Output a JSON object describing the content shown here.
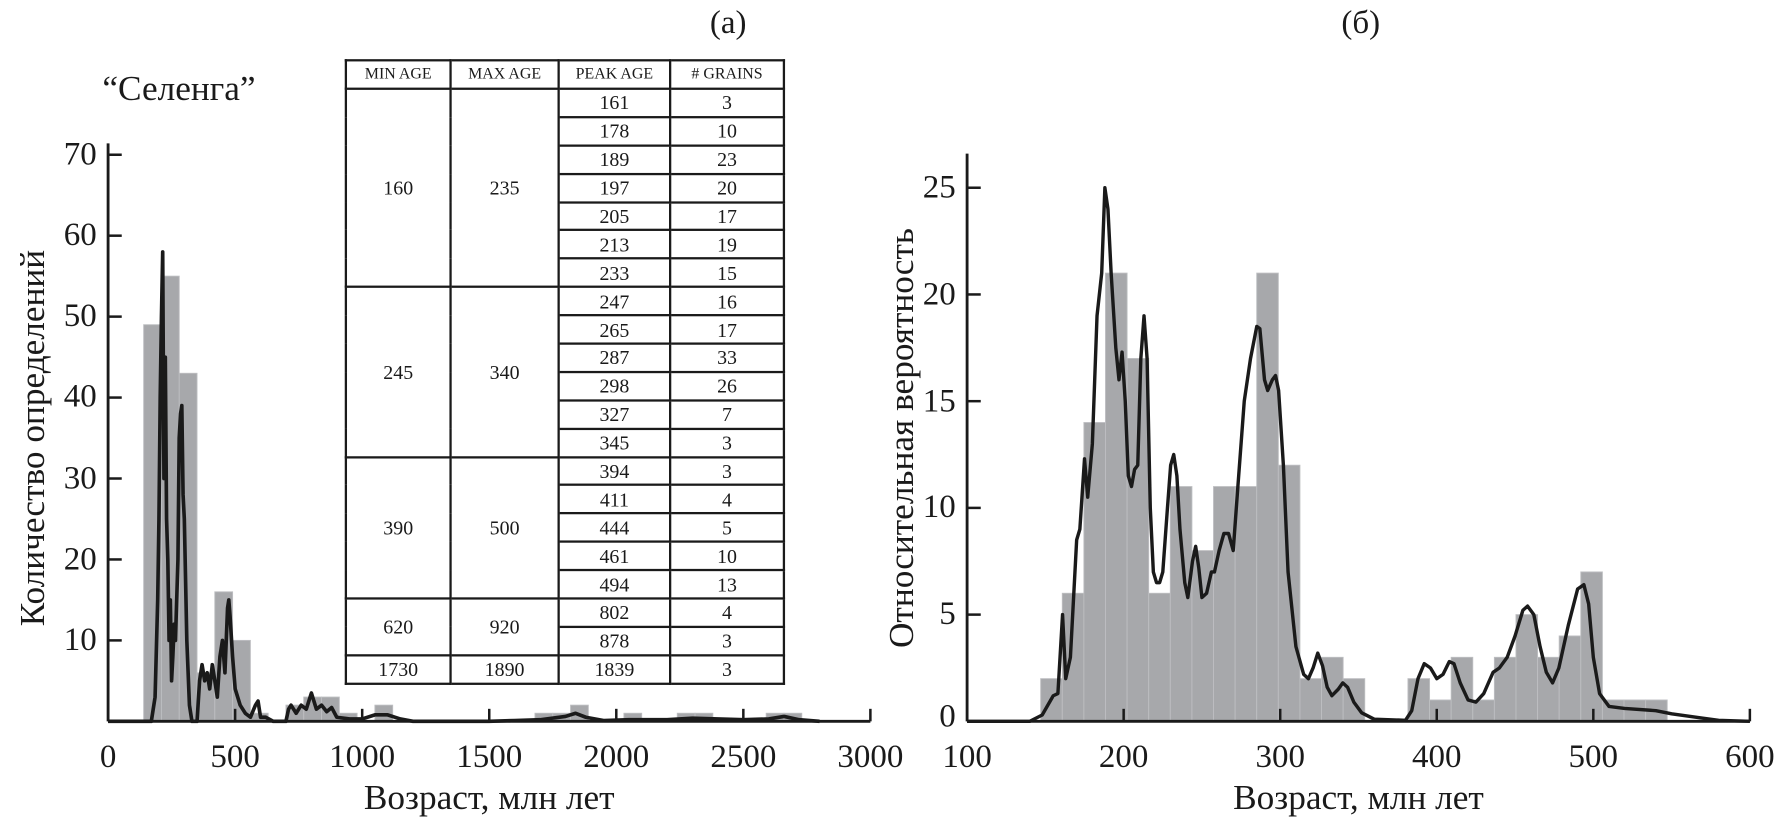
{
  "labels": {
    "panel_a": "(а)",
    "panel_b": "(б)",
    "sample": "“Селенга”"
  },
  "table": {
    "headers": [
      "MIN AGE",
      "MAX AGE",
      "PEAK AGE",
      "# GRAINS"
    ],
    "groups": [
      {
        "min": "160",
        "max": "235",
        "peaks": [
          [
            "161",
            "3"
          ],
          [
            "178",
            "10"
          ],
          [
            "189",
            "23"
          ],
          [
            "197",
            "20"
          ],
          [
            "205",
            "17"
          ],
          [
            "213",
            "19"
          ],
          [
            "233",
            "15"
          ]
        ]
      },
      {
        "min": "245",
        "max": "340",
        "peaks": [
          [
            "247",
            "16"
          ],
          [
            "265",
            "17"
          ],
          [
            "287",
            "33"
          ],
          [
            "298",
            "26"
          ],
          [
            "327",
            "7"
          ],
          [
            "345",
            "3"
          ]
        ]
      },
      {
        "min": "390",
        "max": "500",
        "peaks": [
          [
            "394",
            "3"
          ],
          [
            "411",
            "4"
          ],
          [
            "444",
            "5"
          ],
          [
            "461",
            "10"
          ],
          [
            "494",
            "13"
          ]
        ]
      },
      {
        "min": "620",
        "max": "920",
        "peaks": [
          [
            "802",
            "4"
          ],
          [
            "878",
            "3"
          ]
        ]
      },
      {
        "min": "1730",
        "max": "1890",
        "peaks": [
          [
            "1839",
            "3"
          ]
        ]
      }
    ]
  },
  "chart_data": [
    {
      "type": "bar",
      "panel": "(а)",
      "xlabel": "Возраст, млн лет",
      "ylabel": "Количество определений",
      "xlim": [
        0,
        3000
      ],
      "ylim": [
        0,
        70
      ],
      "xticks": [
        0,
        500,
        1000,
        1500,
        2000,
        2500,
        3000
      ],
      "yticks": [
        10,
        20,
        30,
        40,
        50,
        60,
        70
      ],
      "grid": false,
      "bar_color": "#a7a8ab",
      "line_color": "#1a1a1a",
      "histogram": [
        [
          140,
          210,
          49
        ],
        [
          210,
          280,
          55
        ],
        [
          280,
          350,
          43
        ],
        [
          350,
          420,
          6
        ],
        [
          420,
          490,
          16
        ],
        [
          490,
          560,
          10
        ],
        [
          560,
          630,
          1
        ],
        [
          700,
          770,
          2
        ],
        [
          770,
          840,
          3
        ],
        [
          840,
          910,
          3
        ],
        [
          910,
          980,
          1
        ],
        [
          1050,
          1120,
          2
        ],
        [
          1680,
          1750,
          1
        ],
        [
          1750,
          1820,
          1
        ],
        [
          1820,
          1890,
          2
        ],
        [
          2030,
          2100,
          1
        ],
        [
          2240,
          2310,
          1
        ],
        [
          2310,
          2380,
          1
        ],
        [
          2590,
          2660,
          1
        ],
        [
          2660,
          2730,
          1
        ]
      ],
      "curve": [
        [
          0,
          0
        ],
        [
          170,
          0
        ],
        [
          185,
          3
        ],
        [
          195,
          15
        ],
        [
          200,
          25
        ],
        [
          205,
          40
        ],
        [
          210,
          50
        ],
        [
          215,
          58
        ],
        [
          220,
          30
        ],
        [
          225,
          45
        ],
        [
          230,
          25
        ],
        [
          235,
          20
        ],
        [
          240,
          10
        ],
        [
          245,
          15
        ],
        [
          250,
          5
        ],
        [
          255,
          8
        ],
        [
          260,
          12
        ],
        [
          265,
          10
        ],
        [
          275,
          20
        ],
        [
          280,
          35
        ],
        [
          285,
          38
        ],
        [
          290,
          39
        ],
        [
          295,
          28
        ],
        [
          300,
          25
        ],
        [
          310,
          10
        ],
        [
          320,
          2
        ],
        [
          330,
          0
        ],
        [
          350,
          0
        ],
        [
          360,
          5
        ],
        [
          370,
          7
        ],
        [
          380,
          5
        ],
        [
          390,
          6
        ],
        [
          400,
          4
        ],
        [
          410,
          7
        ],
        [
          420,
          5
        ],
        [
          430,
          3
        ],
        [
          440,
          8
        ],
        [
          450,
          10
        ],
        [
          460,
          6
        ],
        [
          470,
          14
        ],
        [
          475,
          15
        ],
        [
          480,
          13
        ],
        [
          490,
          8
        ],
        [
          500,
          4
        ],
        [
          520,
          2
        ],
        [
          540,
          1
        ],
        [
          560,
          0.5
        ],
        [
          580,
          2
        ],
        [
          590,
          2.5
        ],
        [
          600,
          0.5
        ],
        [
          620,
          0.5
        ],
        [
          650,
          0
        ],
        [
          700,
          0
        ],
        [
          710,
          1.5
        ],
        [
          720,
          2
        ],
        [
          740,
          1
        ],
        [
          760,
          2
        ],
        [
          780,
          1.5
        ],
        [
          800,
          3.5
        ],
        [
          820,
          1.5
        ],
        [
          840,
          2
        ],
        [
          860,
          1.2
        ],
        [
          880,
          1.7
        ],
        [
          900,
          0.5
        ],
        [
          950,
          0.3
        ],
        [
          1000,
          0.3
        ],
        [
          1050,
          0.8
        ],
        [
          1100,
          0.8
        ],
        [
          1150,
          0.3
        ],
        [
          1200,
          0
        ],
        [
          1500,
          0
        ],
        [
          1600,
          0.1
        ],
        [
          1700,
          0.2
        ],
        [
          1800,
          0.6
        ],
        [
          1840,
          1
        ],
        [
          1880,
          0.5
        ],
        [
          1950,
          0.1
        ],
        [
          2050,
          0.2
        ],
        [
          2200,
          0.2
        ],
        [
          2300,
          0.4
        ],
        [
          2400,
          0.3
        ],
        [
          2500,
          0.2
        ],
        [
          2600,
          0.3
        ],
        [
          2660,
          0.6
        ],
        [
          2720,
          0.2
        ],
        [
          2800,
          0
        ]
      ]
    },
    {
      "type": "bar",
      "panel": "(б)",
      "xlabel": "Возраст, млн лет",
      "ylabel": "Относительная вероятность",
      "xlim": [
        100,
        600
      ],
      "ylim": [
        0,
        26
      ],
      "xticks": [
        100,
        200,
        300,
        400,
        500,
        600
      ],
      "yticks": [
        0,
        5,
        10,
        15,
        20,
        25
      ],
      "grid": false,
      "bar_color": "#a7a8ab",
      "line_color": "#1a1a1a",
      "histogram": [
        [
          147,
          160.8,
          2
        ],
        [
          160.8,
          174.6,
          6
        ],
        [
          174.6,
          188.4,
          14
        ],
        [
          188.4,
          202.2,
          21
        ],
        [
          202.2,
          216,
          17
        ],
        [
          216,
          229.8,
          6
        ],
        [
          229.8,
          243.6,
          11
        ],
        [
          243.6,
          257.4,
          8
        ],
        [
          257.4,
          271.2,
          11
        ],
        [
          271.2,
          285,
          11
        ],
        [
          285,
          298.8,
          21
        ],
        [
          298.8,
          312.6,
          12
        ],
        [
          312.6,
          326.4,
          2
        ],
        [
          326.4,
          340.2,
          3
        ],
        [
          340.2,
          354,
          2
        ],
        [
          381.6,
          395.4,
          2
        ],
        [
          395.4,
          409.2,
          1
        ],
        [
          409.2,
          423,
          3
        ],
        [
          423,
          436.8,
          1
        ],
        [
          436.8,
          450.6,
          3
        ],
        [
          450.6,
          464.4,
          5
        ],
        [
          464.4,
          478.2,
          3
        ],
        [
          478.2,
          492,
          4
        ],
        [
          492,
          505.8,
          7
        ],
        [
          505.8,
          519.6,
          1
        ],
        [
          519.6,
          533.4,
          1
        ],
        [
          533.4,
          547.2,
          1
        ]
      ],
      "curve": [
        [
          100,
          0
        ],
        [
          140,
          0
        ],
        [
          148,
          0.3
        ],
        [
          155,
          1.2
        ],
        [
          158,
          1.3
        ],
        [
          161,
          5
        ],
        [
          163,
          2
        ],
        [
          166,
          3
        ],
        [
          170,
          8.5
        ],
        [
          172,
          9
        ],
        [
          175,
          12.3
        ],
        [
          177,
          10.5
        ],
        [
          180,
          13
        ],
        [
          183,
          19
        ],
        [
          186,
          21
        ],
        [
          188,
          25
        ],
        [
          190,
          24
        ],
        [
          192,
          21
        ],
        [
          195,
          17.5
        ],
        [
          197,
          16
        ],
        [
          199,
          17.3
        ],
        [
          201,
          15
        ],
        [
          203,
          11.5
        ],
        [
          205,
          11
        ],
        [
          207,
          11.8
        ],
        [
          209,
          12
        ],
        [
          211,
          17
        ],
        [
          213,
          19
        ],
        [
          215,
          17
        ],
        [
          217,
          10
        ],
        [
          219,
          7
        ],
        [
          221,
          6.5
        ],
        [
          223,
          6.5
        ],
        [
          225,
          7
        ],
        [
          228,
          10
        ],
        [
          230,
          12
        ],
        [
          232,
          12.5
        ],
        [
          234,
          11.5
        ],
        [
          236,
          9
        ],
        [
          239,
          6.5
        ],
        [
          241,
          5.8
        ],
        [
          244,
          7.5
        ],
        [
          246,
          8.2
        ],
        [
          248,
          7.2
        ],
        [
          250,
          5.8
        ],
        [
          253,
          6
        ],
        [
          256,
          7
        ],
        [
          258,
          7
        ],
        [
          261,
          8
        ],
        [
          264,
          8.8
        ],
        [
          267,
          8.8
        ],
        [
          270,
          8
        ],
        [
          273,
          11
        ],
        [
          277,
          15
        ],
        [
          281,
          17
        ],
        [
          285,
          18.5
        ],
        [
          287,
          18.4
        ],
        [
          290,
          16
        ],
        [
          292,
          15.5
        ],
        [
          295,
          16
        ],
        [
          297,
          16.2
        ],
        [
          299,
          15.5
        ],
        [
          302,
          12
        ],
        [
          305,
          7
        ],
        [
          310,
          3.5
        ],
        [
          315,
          2.2
        ],
        [
          318,
          2
        ],
        [
          321,
          2.5
        ],
        [
          324,
          3.2
        ],
        [
          327,
          2.6
        ],
        [
          330,
          1.6
        ],
        [
          333,
          1.2
        ],
        [
          337,
          1.5
        ],
        [
          340,
          1.8
        ],
        [
          343,
          1.6
        ],
        [
          347,
          0.9
        ],
        [
          352,
          0.4
        ],
        [
          360,
          0.1
        ],
        [
          380,
          0.05
        ],
        [
          384,
          0.5
        ],
        [
          388,
          2
        ],
        [
          392,
          2.7
        ],
        [
          396,
          2.5
        ],
        [
          400,
          2
        ],
        [
          404,
          2.2
        ],
        [
          408,
          2.8
        ],
        [
          411,
          2.7
        ],
        [
          415,
          1.8
        ],
        [
          420,
          1
        ],
        [
          425,
          0.9
        ],
        [
          430,
          1.3
        ],
        [
          436,
          2.3
        ],
        [
          440,
          2.5
        ],
        [
          445,
          3
        ],
        [
          450,
          4
        ],
        [
          455,
          5.2
        ],
        [
          458,
          5.4
        ],
        [
          462,
          5
        ],
        [
          466,
          3.5
        ],
        [
          470,
          2.3
        ],
        [
          474,
          1.8
        ],
        [
          478,
          2.5
        ],
        [
          484,
          4.5
        ],
        [
          490,
          6.2
        ],
        [
          494,
          6.4
        ],
        [
          497,
          5.5
        ],
        [
          500,
          3
        ],
        [
          504,
          1.3
        ],
        [
          510,
          0.7
        ],
        [
          520,
          0.6
        ],
        [
          540,
          0.5
        ],
        [
          550,
          0.35
        ],
        [
          570,
          0.15
        ],
        [
          580,
          0.05
        ],
        [
          600,
          0
        ]
      ]
    }
  ]
}
